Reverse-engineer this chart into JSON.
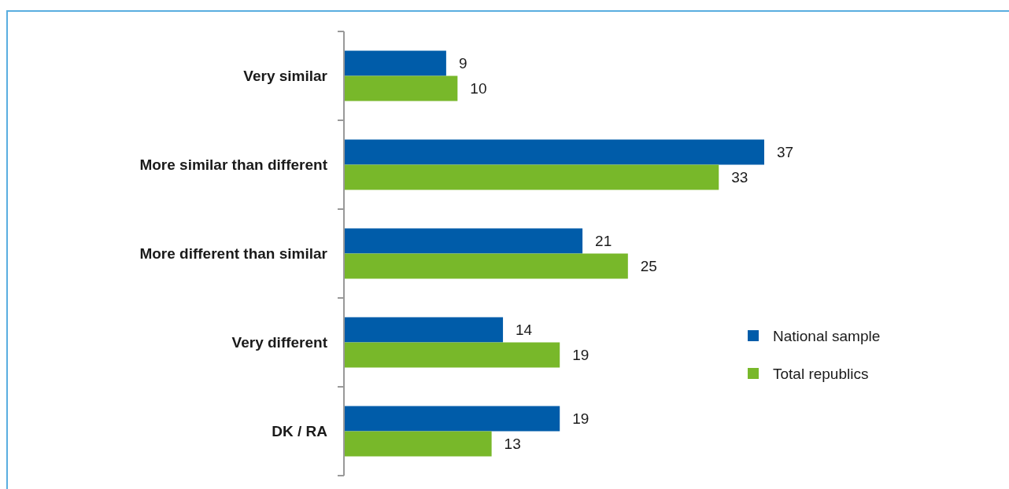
{
  "chart_data": {
    "type": "bar",
    "orientation": "horizontal",
    "categories": [
      "Very similar",
      "More similar than different",
      "More different than similar",
      "Very different",
      "DK / RA"
    ],
    "series": [
      {
        "name": "National sample",
        "color": "#005ca9",
        "values": [
          9,
          37,
          21,
          14,
          19
        ]
      },
      {
        "name": "Total republics",
        "color": "#78b82a",
        "values": [
          10,
          33,
          25,
          19,
          13
        ]
      }
    ],
    "data_labels": true,
    "legend": "right",
    "grid": false
  }
}
